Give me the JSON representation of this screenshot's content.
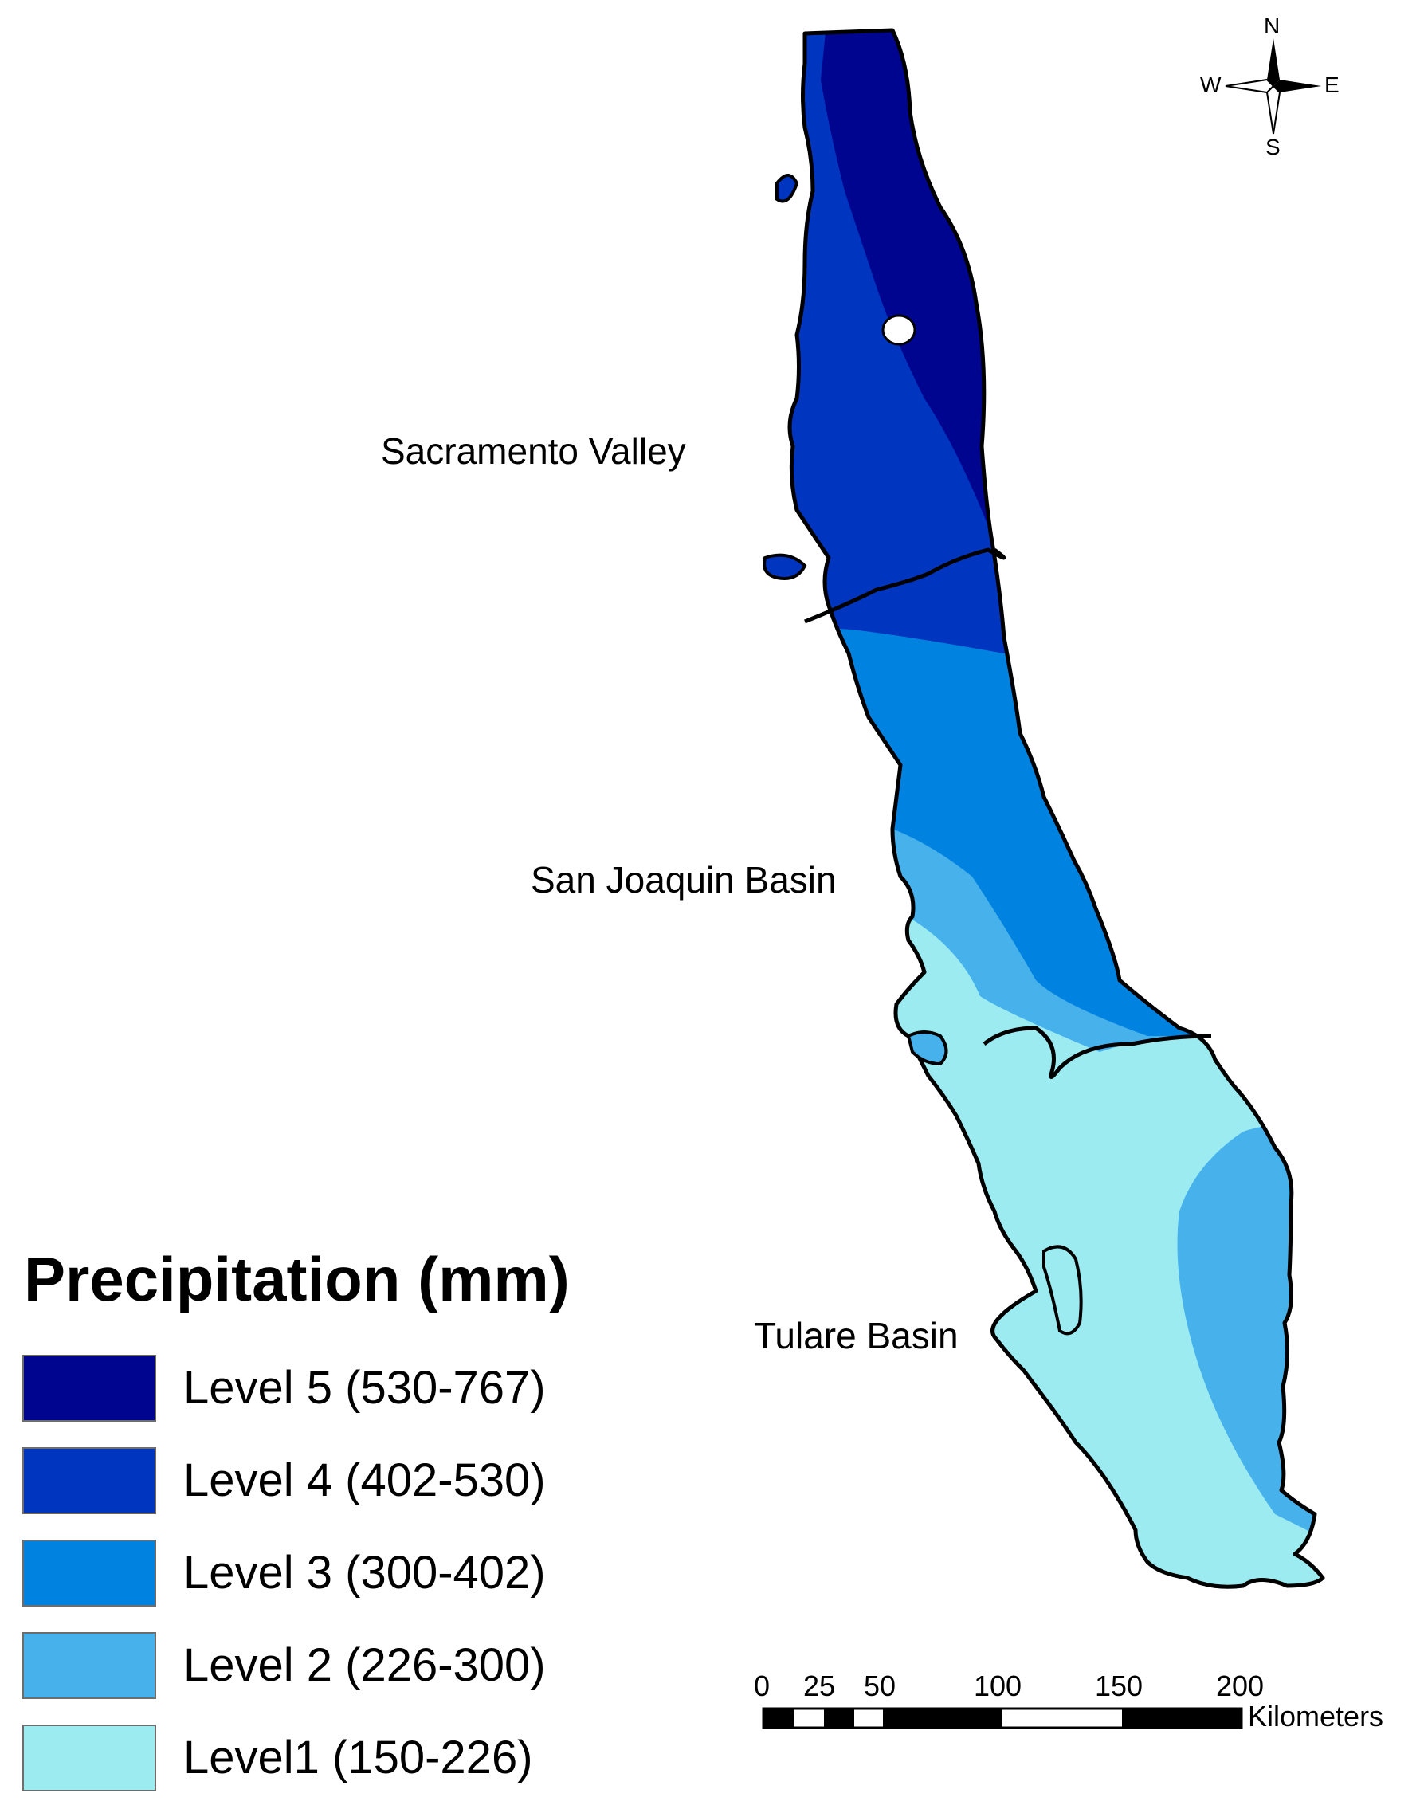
{
  "map": {
    "regions": [
      {
        "name": "Sacramento Valley"
      },
      {
        "name": "San Joaquin Basin"
      },
      {
        "name": "Tulare Basin"
      }
    ],
    "compass": {
      "north": "N",
      "south": "S",
      "east": "E",
      "west": "W"
    },
    "scale_bar": {
      "ticks": [
        "0",
        "25",
        "50",
        "100",
        "150",
        "200"
      ],
      "unit": "Kilometers"
    }
  },
  "legend": {
    "title": "Precipitation (mm)",
    "items": [
      {
        "label": "Level 5 (530-767)",
        "color": "#00058f"
      },
      {
        "label": "Level 4 (402-530)",
        "color": "#0036bf"
      },
      {
        "label": "Level 3 (300-402)",
        "color": "#0082e0"
      },
      {
        "label": "Level 2 (226-300)",
        "color": "#47b1ec"
      },
      {
        "label": "Level1 (150-226)",
        "color": "#9bebf0"
      }
    ]
  }
}
